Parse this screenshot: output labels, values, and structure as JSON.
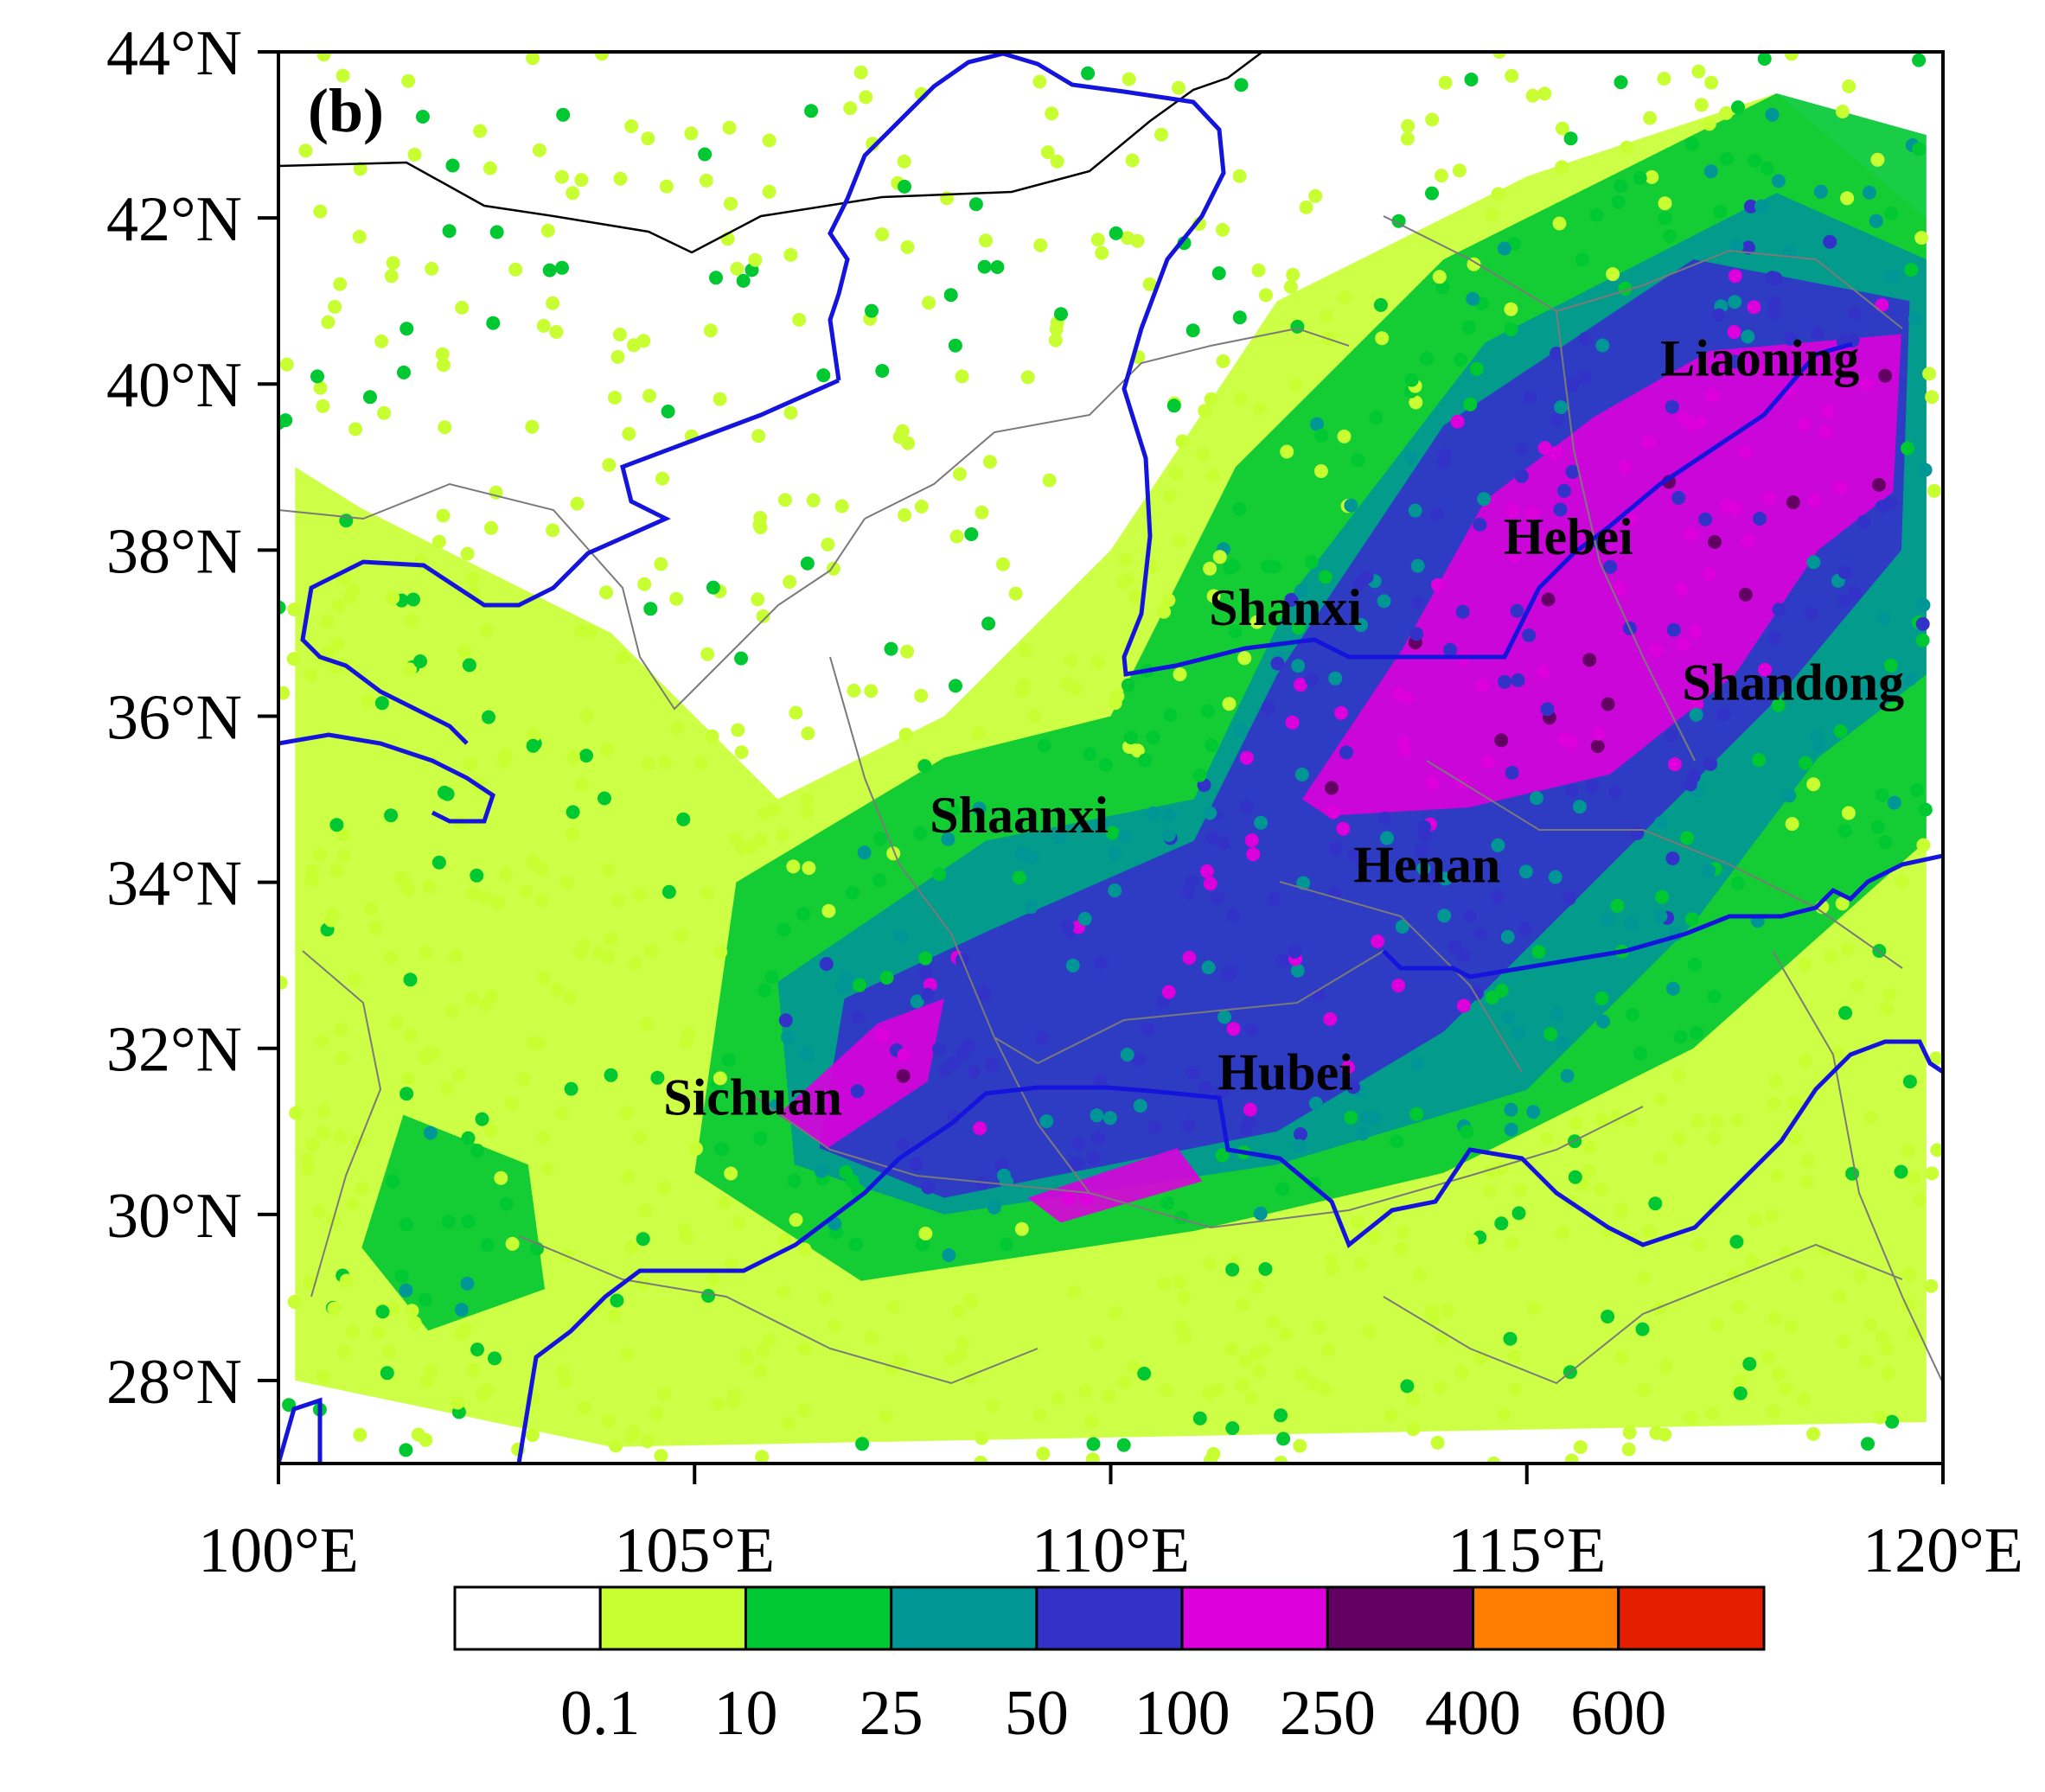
{
  "panel_label": "(b)",
  "x_axis": {
    "range": [
      100,
      120
    ],
    "ticks": [
      {
        "value": 100,
        "label": "100°E"
      },
      {
        "value": 105,
        "label": "105°E"
      },
      {
        "value": 110,
        "label": "110°E"
      },
      {
        "value": 115,
        "label": "115°E"
      },
      {
        "value": 120,
        "label": "120°E"
      }
    ]
  },
  "y_axis": {
    "range": [
      27,
      44
    ],
    "ticks": [
      {
        "value": 44,
        "label": "44°N"
      },
      {
        "value": 42,
        "label": "42°N"
      },
      {
        "value": 40,
        "label": "40°N"
      },
      {
        "value": 38,
        "label": "38°N"
      },
      {
        "value": 36,
        "label": "36°N"
      },
      {
        "value": 34,
        "label": "34°N"
      },
      {
        "value": 32,
        "label": "32°N"
      },
      {
        "value": 30,
        "label": "30°N"
      },
      {
        "value": 28,
        "label": "28°N"
      }
    ]
  },
  "provinces": [
    {
      "name": "Liaoning",
      "lon": 117.8,
      "lat": 40.1
    },
    {
      "name": "Hebei",
      "lon": 115.5,
      "lat": 37.95
    },
    {
      "name": "Shanxi",
      "lon": 112.1,
      "lat": 37.1
    },
    {
      "name": "Shandong",
      "lon": 118.2,
      "lat": 36.2
    },
    {
      "name": "Shaanxi",
      "lon": 108.9,
      "lat": 34.6
    },
    {
      "name": "Henan",
      "lon": 113.8,
      "lat": 34.0
    },
    {
      "name": "Hubei",
      "lon": 112.1,
      "lat": 31.5
    },
    {
      "name": "Sichuan",
      "lon": 105.7,
      "lat": 31.2
    }
  ],
  "colorbar": {
    "colors": [
      "#ffffff",
      "#c8ff32",
      "#00c832",
      "#009696",
      "#3232c8",
      "#dc00dc",
      "#640064",
      "#ff7d00",
      "#e61e00"
    ],
    "labels": [
      "0.1",
      "10",
      "25",
      "50",
      "100",
      "250",
      "400",
      "600"
    ]
  },
  "rain_bands": [
    {
      "level": 1,
      "points": [
        [
          101,
          38.5
        ],
        [
          104,
          37
        ],
        [
          106,
          35
        ],
        [
          108,
          36
        ],
        [
          110,
          38
        ],
        [
          112,
          41
        ],
        [
          115,
          42.5
        ],
        [
          118,
          43.5
        ],
        [
          119.8,
          42
        ],
        [
          119.8,
          27.5
        ],
        [
          104,
          27.2
        ],
        [
          100.2,
          28
        ],
        [
          100.2,
          39
        ]
      ]
    },
    {
      "level": 2,
      "points": [
        [
          105.5,
          34
        ],
        [
          108,
          35.5
        ],
        [
          110,
          36
        ],
        [
          111.5,
          39
        ],
        [
          114,
          41.5
        ],
        [
          118,
          43.5
        ],
        [
          119.8,
          43
        ],
        [
          119.8,
          34.5
        ],
        [
          117,
          32
        ],
        [
          114,
          30.5
        ],
        [
          111,
          29.8
        ],
        [
          107,
          29.2
        ],
        [
          105,
          30.5
        ]
      ]
    },
    {
      "level": 2,
      "points": [
        [
          101.5,
          31.2
        ],
        [
          103,
          30.6
        ],
        [
          103.2,
          29.1
        ],
        [
          101.8,
          28.6
        ],
        [
          101,
          29.6
        ]
      ]
    },
    {
      "level": 3,
      "points": [
        [
          106,
          32.8
        ],
        [
          108.5,
          34.5
        ],
        [
          111,
          35
        ],
        [
          112.2,
          37.5
        ],
        [
          114.5,
          40.5
        ],
        [
          118,
          42.3
        ],
        [
          119.8,
          41.5
        ],
        [
          119.8,
          36.5
        ],
        [
          118.5,
          35.5
        ],
        [
          117,
          33.5
        ],
        [
          115,
          31.5
        ],
        [
          112,
          30.6
        ],
        [
          108,
          30
        ],
        [
          106.2,
          30.6
        ]
      ]
    },
    {
      "level": 4,
      "points": [
        [
          106.8,
          32.6
        ],
        [
          108.5,
          33.4
        ],
        [
          111,
          34.5
        ],
        [
          112,
          36.5
        ],
        [
          114,
          39.5
        ],
        [
          117,
          41.5
        ],
        [
          119.6,
          41
        ],
        [
          119.5,
          38
        ],
        [
          118,
          36.2
        ],
        [
          116,
          34.2
        ],
        [
          114,
          32.2
        ],
        [
          112,
          31
        ],
        [
          108,
          30.2
        ],
        [
          106.5,
          30.8
        ]
      ]
    },
    {
      "level": 5,
      "points": [
        [
          112.3,
          35
        ],
        [
          113.5,
          36.8
        ],
        [
          114.5,
          38.6
        ],
        [
          115.8,
          39.6
        ],
        [
          117.2,
          40.4
        ],
        [
          119.5,
          40.6
        ],
        [
          119.4,
          38.7
        ],
        [
          118.5,
          38
        ],
        [
          117.5,
          36.5
        ],
        [
          116,
          35.3
        ],
        [
          114.3,
          34.9
        ],
        [
          112.6,
          34.8
        ]
      ]
    },
    {
      "level": 5,
      "points": [
        [
          106,
          31.2
        ],
        [
          107.2,
          32.3
        ],
        [
          108,
          32.6
        ],
        [
          107.8,
          31.6
        ],
        [
          106.6,
          30.8
        ]
      ]
    },
    {
      "level": 5,
      "points": [
        [
          109,
          30.2
        ],
        [
          110.8,
          30.8
        ],
        [
          111.1,
          30.4
        ],
        [
          109.4,
          29.9
        ]
      ]
    }
  ]
}
